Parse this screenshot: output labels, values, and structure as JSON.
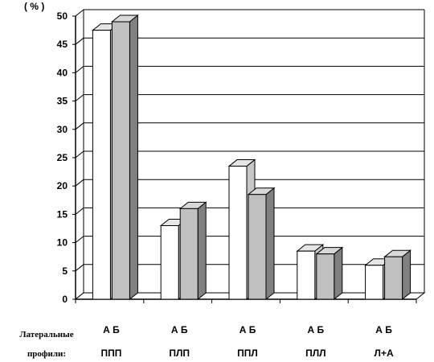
{
  "chart_data": {
    "type": "bar",
    "unit_label": "( % )",
    "row_label_line1": "Латеральные",
    "row_label_line2": "профили:",
    "series_markers": "А Б",
    "categories": [
      "ППП",
      "ПЛП",
      "ППЛ",
      "ПЛЛ",
      "Л+А"
    ],
    "series": [
      {
        "values": [
          47.5,
          13,
          23.5,
          8.5,
          6
        ],
        "color": "#ffffff"
      },
      {
        "values": [
          49,
          16,
          18.5,
          8,
          7.5
        ],
        "color": "#c0c0c0"
      }
    ],
    "ylim": [
      0,
      50
    ],
    "yticks": [
      "0",
      "5",
      "10",
      "15",
      "20",
      "25",
      "30",
      "35",
      "40",
      "45",
      "50"
    ],
    "grid": true,
    "bar_style": "3d"
  }
}
